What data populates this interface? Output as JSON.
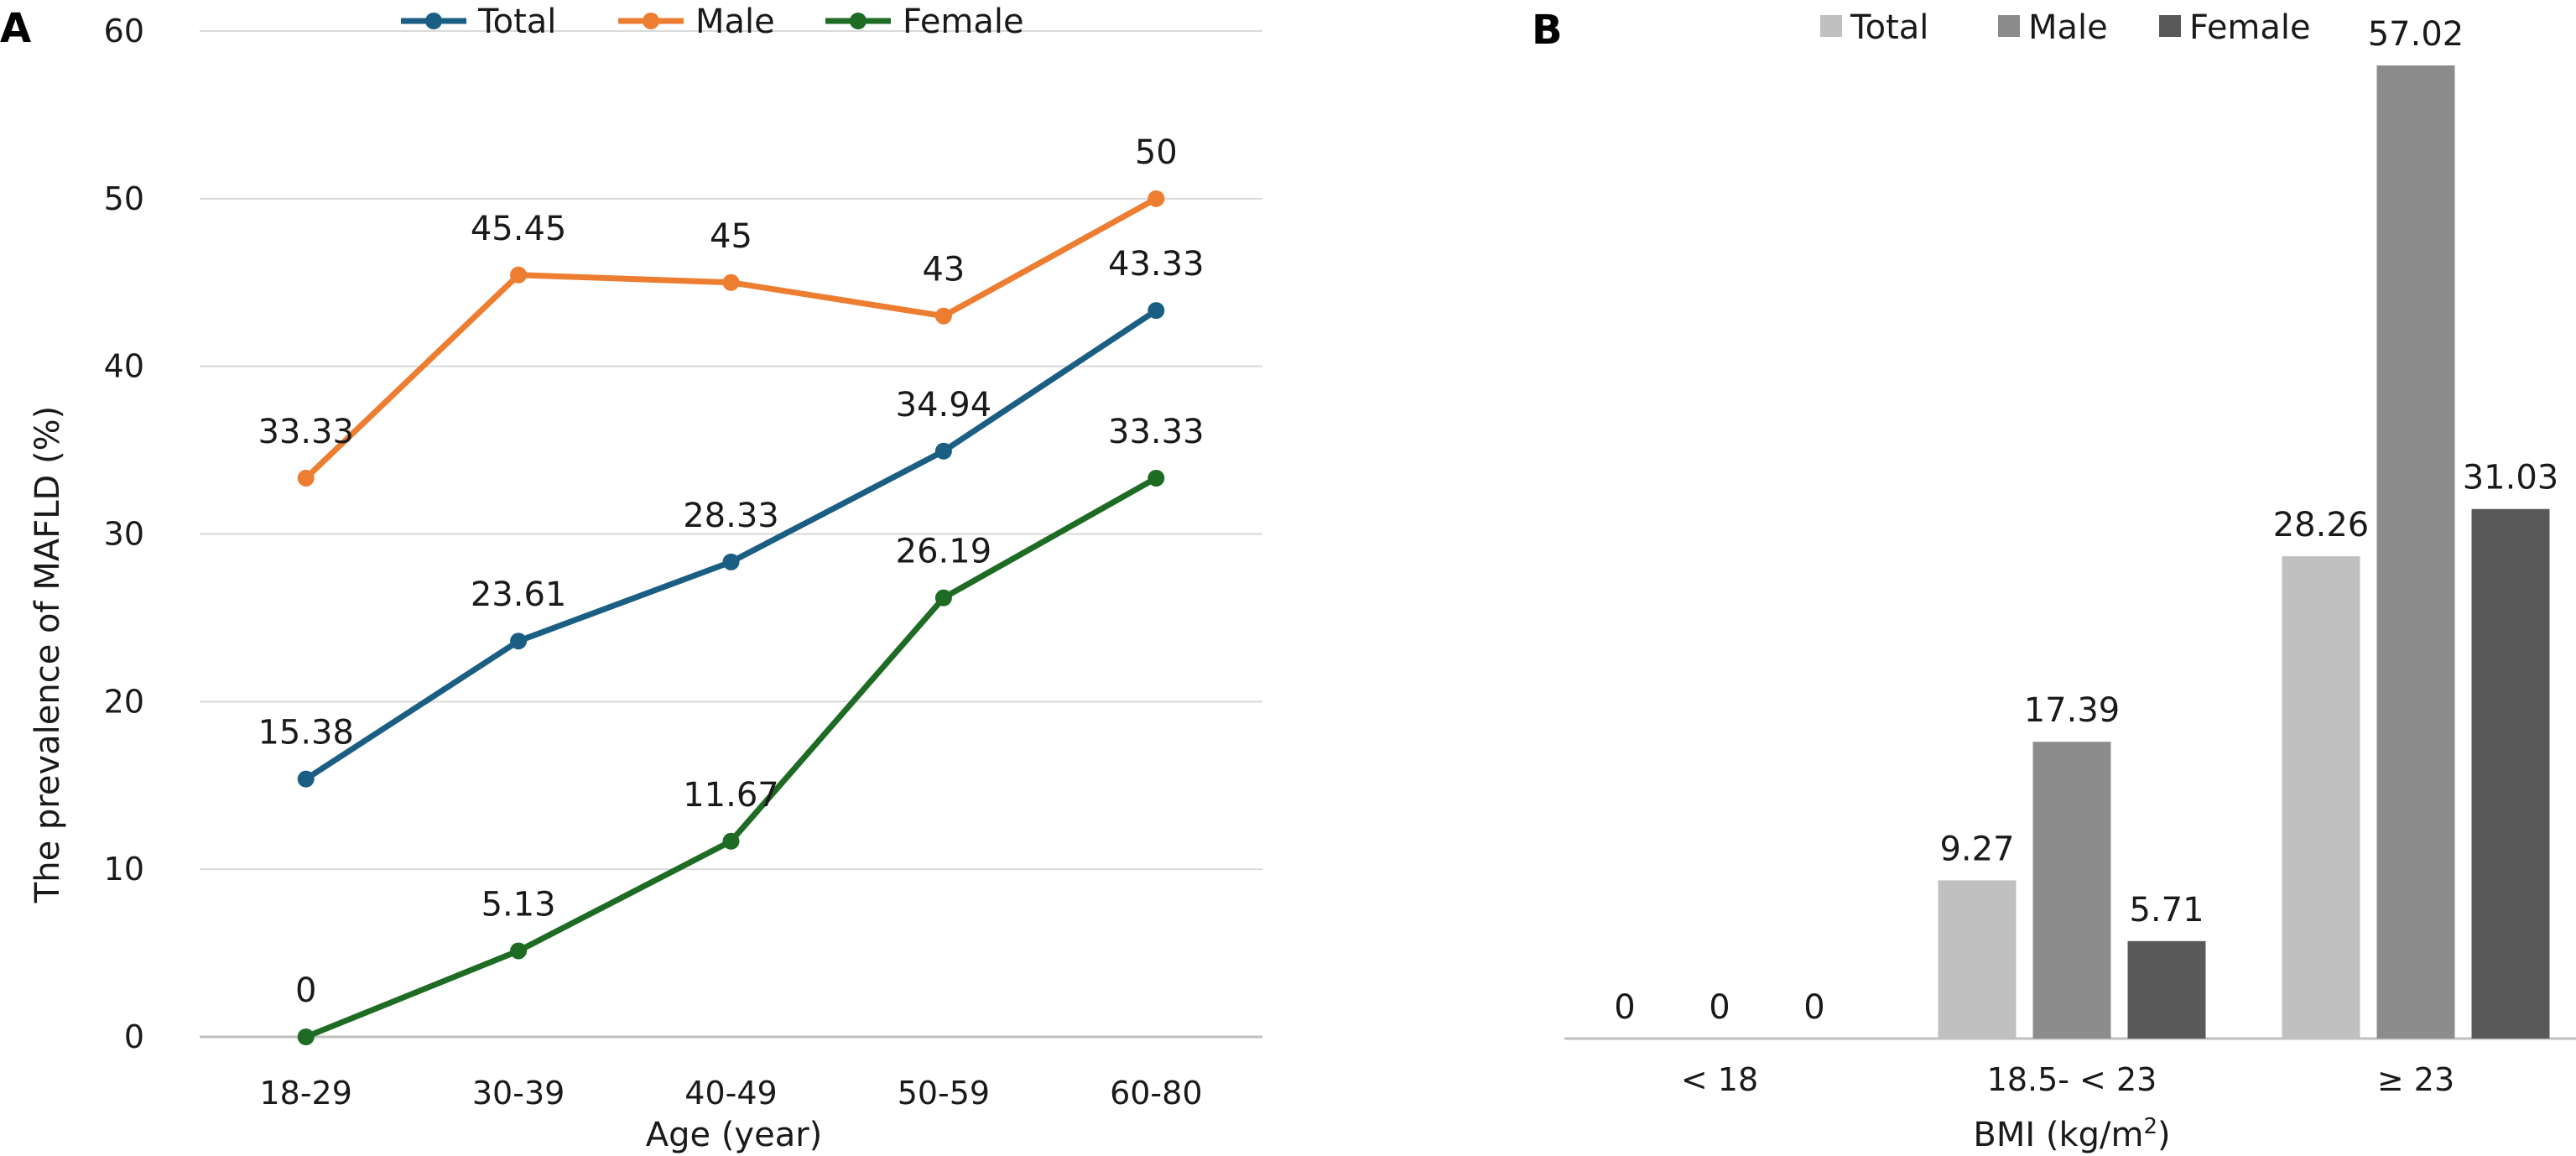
{
  "chart_data": [
    {
      "panel": "A",
      "type": "line",
      "categories": [
        "18-29",
        "30-39",
        "40-49",
        "50-59",
        "60-80"
      ],
      "series": [
        {
          "name": "Total",
          "values": [
            15.38,
            23.61,
            28.33,
            34.94,
            43.33
          ],
          "labels": [
            "15.38",
            "23.61",
            "28.33",
            "34.94",
            "43.33"
          ],
          "color": "#1b5e84"
        },
        {
          "name": "Male",
          "values": [
            33.33,
            45.45,
            45,
            43,
            50
          ],
          "labels": [
            "33.33",
            "45.45",
            "45",
            "43",
            "50"
          ],
          "color": "#ed7d31"
        },
        {
          "name": "Female",
          "values": [
            0,
            5.13,
            11.67,
            26.19,
            33.33
          ],
          "labels": [
            "0",
            "5.13",
            "11.67",
            "26.19",
            "33.33"
          ],
          "color": "#1e6b23"
        }
      ],
      "xlabel": "Age (year)",
      "ylabel": "The prevalence of MAFLD (%)",
      "ylim": [
        0,
        60
      ],
      "yticks": [
        "0",
        "10",
        "20",
        "30",
        "40",
        "50",
        "60"
      ],
      "grid": true,
      "legend": "top"
    },
    {
      "panel": "B",
      "type": "bar",
      "categories": [
        "< 18",
        "18.5- < 23",
        "≥ 23"
      ],
      "series": [
        {
          "name": "Total",
          "values": [
            0,
            9.27,
            28.26
          ],
          "labels": [
            "0",
            "9.27",
            "28.26"
          ],
          "color": "#c0c0c0"
        },
        {
          "name": "Male",
          "values": [
            0,
            17.39,
            57.02
          ],
          "labels": [
            "0",
            "17.39",
            "57.02"
          ],
          "color": "#8c8c8c"
        },
        {
          "name": "Female",
          "values": [
            0,
            5.71,
            31.03
          ],
          "labels": [
            "0",
            "5.71",
            "31.03"
          ],
          "color": "#595959"
        }
      ],
      "xlabel_main": "BMI (kg/m",
      "xlabel_sup": "2",
      "xlabel_end": ")",
      "grid": false,
      "legend": "top"
    }
  ]
}
